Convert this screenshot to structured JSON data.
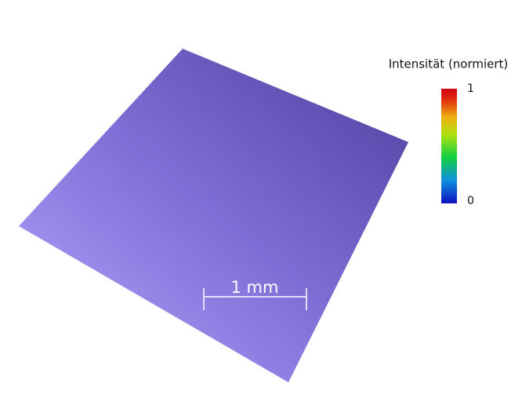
{
  "colorbar": {
    "title": "Intensität (normiert)",
    "range": [
      0,
      1
    ],
    "ticks": [
      0,
      1
    ]
  },
  "scale_bar": {
    "label": "1 mm"
  }
}
